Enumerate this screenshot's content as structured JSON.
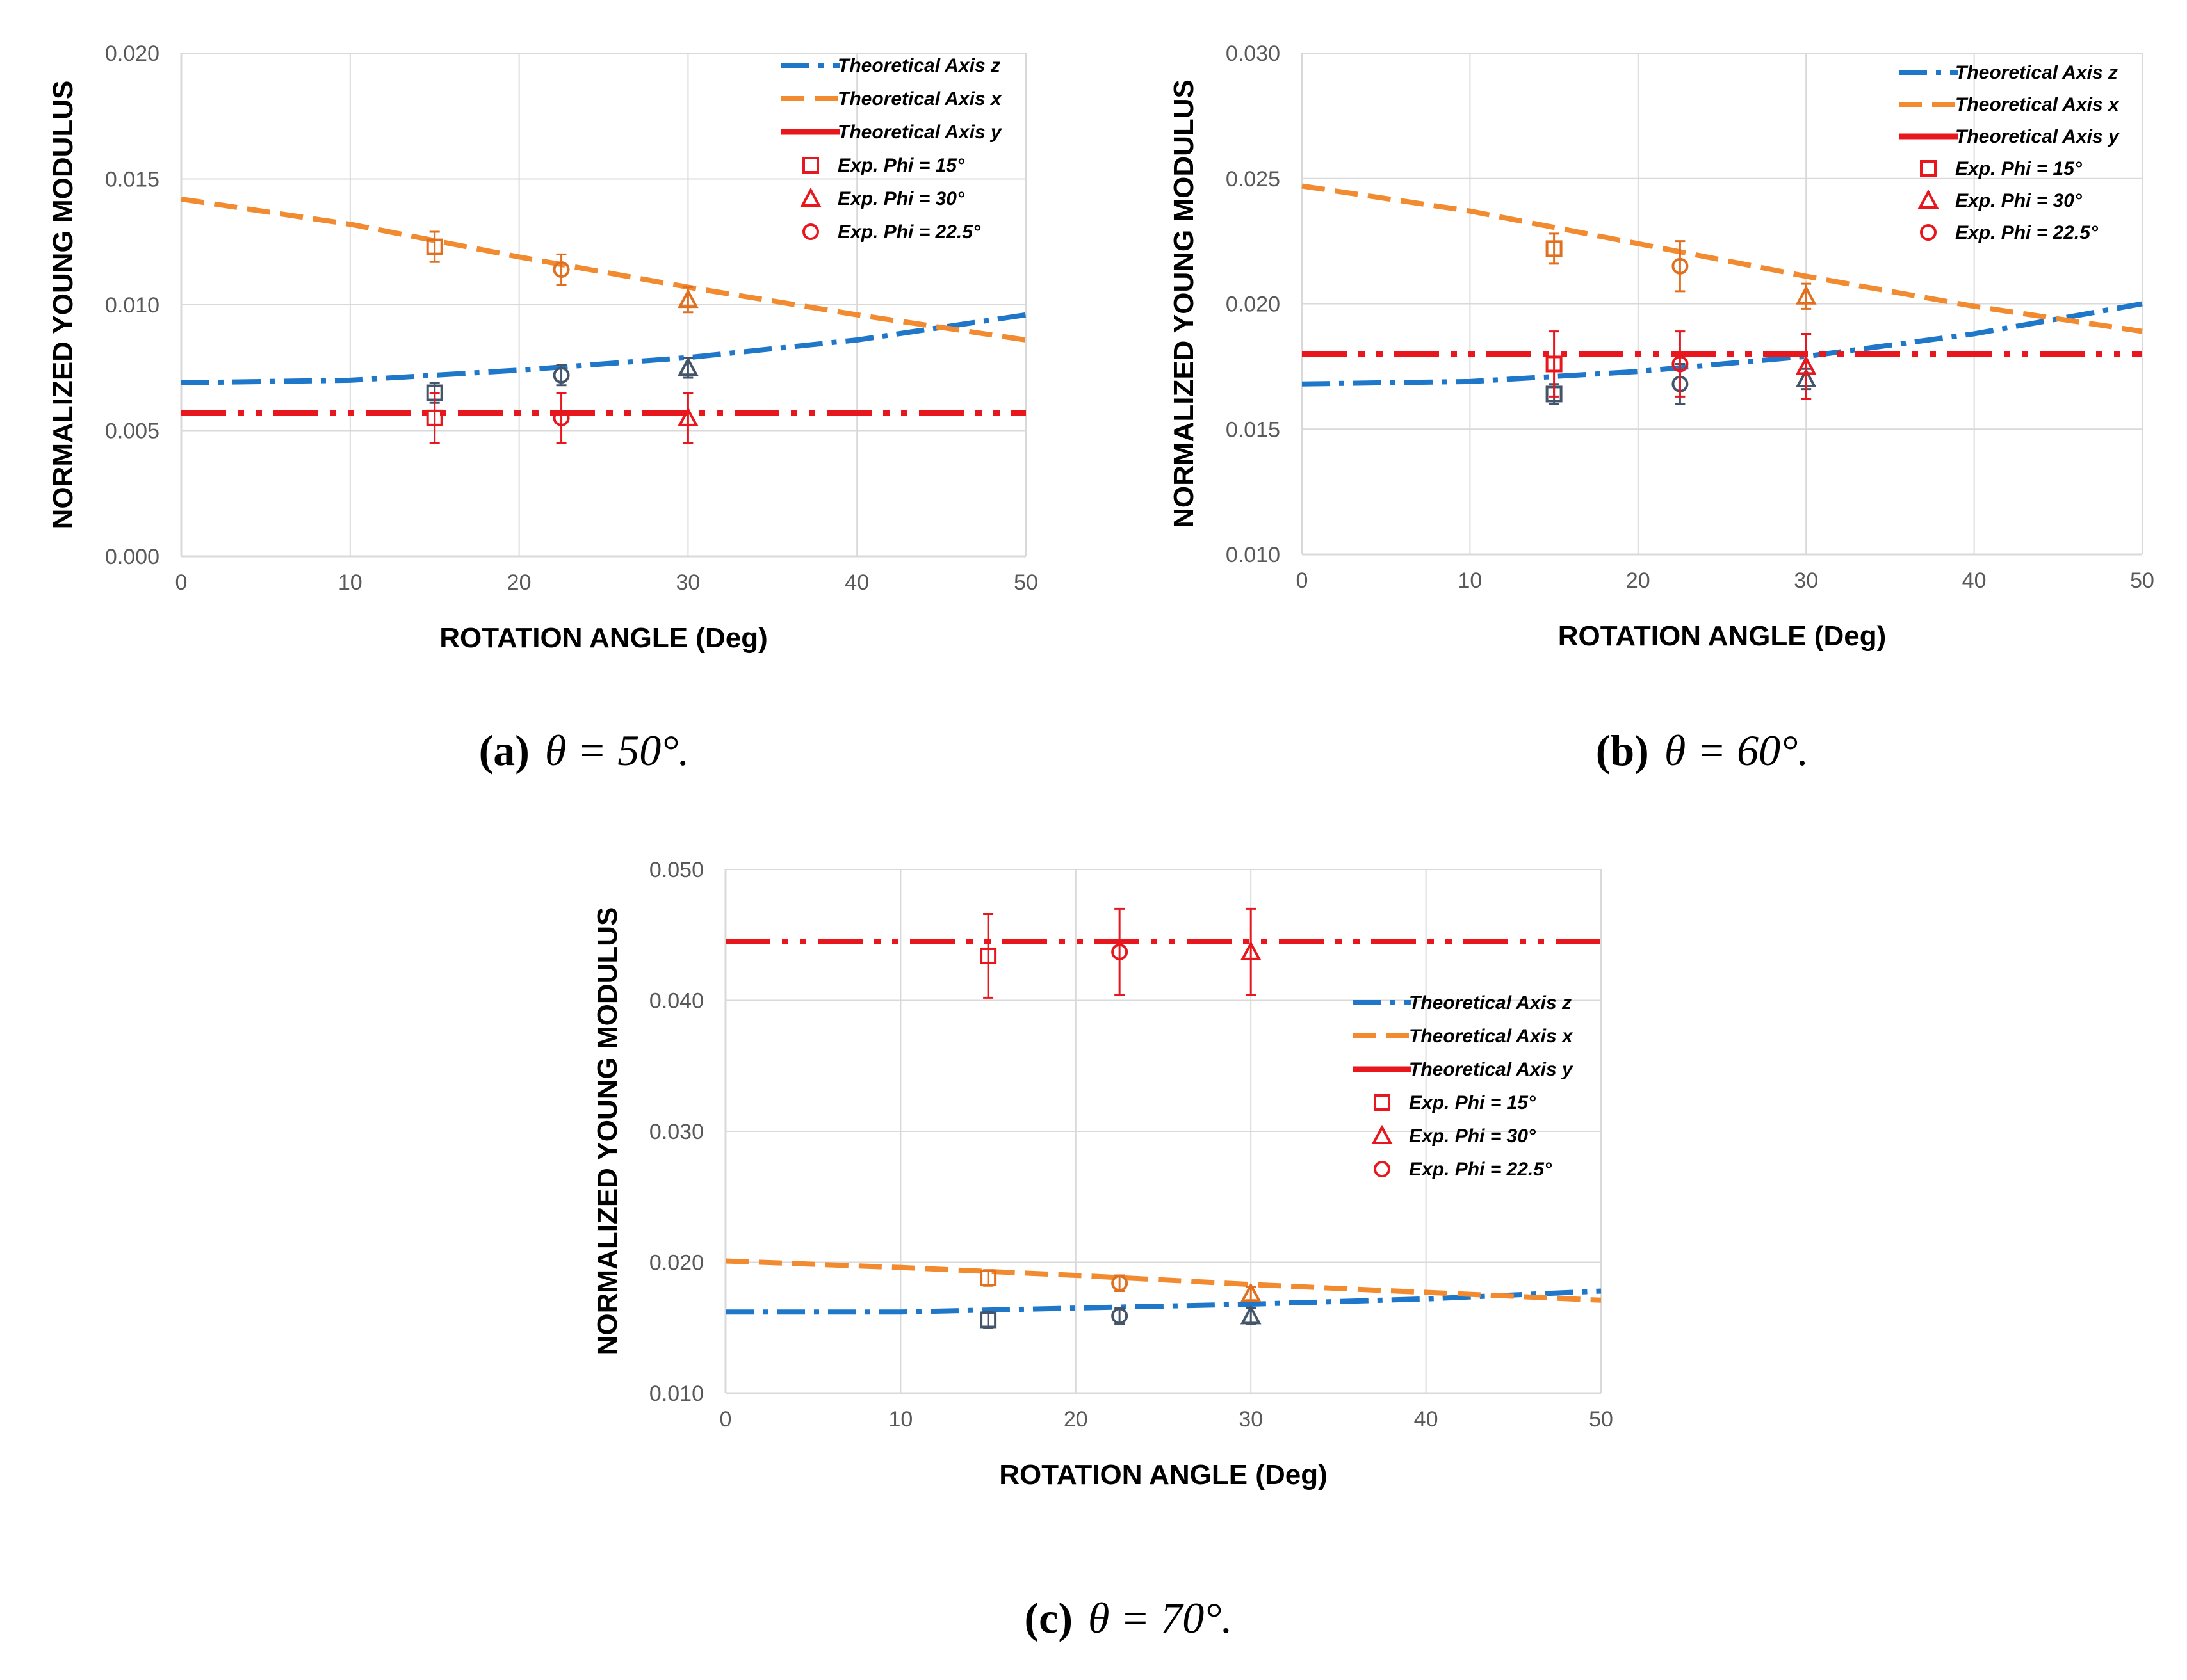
{
  "colors": {
    "axis_z": "#1f77c9",
    "axis_x": "#f28a30",
    "axis_y": "#e8171e",
    "exp_red": "#e8171e",
    "exp_orange": "#e07020",
    "exp_blue": "#44546a",
    "grid": "#d9d9d9"
  },
  "chart_data": [
    {
      "type": "line",
      "panel": "a",
      "caption": {
        "label": "(a)",
        "text": "θ = 50°."
      },
      "xlabel": "ROTATION ANGLE (Deg)",
      "ylabel": "NORMALIZED YOUNG MODULUS",
      "xlim": [
        0,
        50
      ],
      "ylim": [
        0.0,
        0.02
      ],
      "xticks": [
        "0",
        "10",
        "20",
        "30",
        "40",
        "50"
      ],
      "yticks": [
        "0.000",
        "0.005",
        "0.010",
        "0.015",
        "0.020"
      ],
      "legend_position": "top-right",
      "legend": [
        "Theoretical Axis z",
        "Theoretical Axis x",
        "Theoretical Axis y",
        "Exp. Phi = 15°",
        "Exp. Phi = 30°",
        "Exp. Phi = 22.5°"
      ],
      "series": [
        {
          "name": "Theoretical Axis z",
          "kind": "line",
          "x": [
            0,
            10,
            20,
            30,
            40,
            50
          ],
          "y": [
            0.0069,
            0.007,
            0.0074,
            0.0079,
            0.0086,
            0.0096
          ]
        },
        {
          "name": "Theoretical Axis x",
          "kind": "line",
          "x": [
            0,
            10,
            20,
            30,
            40,
            50
          ],
          "y": [
            0.0142,
            0.0132,
            0.0119,
            0.0107,
            0.0096,
            0.0086
          ]
        },
        {
          "name": "Theoretical Axis y",
          "kind": "line",
          "x": [
            0,
            50
          ],
          "y": [
            0.0057,
            0.0057
          ]
        }
      ],
      "experimental": [
        {
          "marker": "square",
          "x": 15,
          "y": 0.0123,
          "err": 0.0006,
          "color": "exp_orange"
        },
        {
          "marker": "circle",
          "x": 22.5,
          "y": 0.0114,
          "err": 0.0006,
          "color": "exp_orange"
        },
        {
          "marker": "triangle",
          "x": 30,
          "y": 0.0102,
          "err": 0.0005,
          "color": "exp_orange"
        },
        {
          "marker": "square",
          "x": 15,
          "y": 0.0065,
          "err": 0.0004,
          "color": "exp_blue"
        },
        {
          "marker": "circle",
          "x": 22.5,
          "y": 0.0072,
          "err": 0.0004,
          "color": "exp_blue"
        },
        {
          "marker": "triangle",
          "x": 30,
          "y": 0.0075,
          "err": 0.0004,
          "color": "exp_blue"
        },
        {
          "marker": "square",
          "x": 15,
          "y": 0.0055,
          "err": 0.001,
          "color": "exp_red"
        },
        {
          "marker": "circle",
          "x": 22.5,
          "y": 0.0055,
          "err": 0.001,
          "color": "exp_red"
        },
        {
          "marker": "triangle",
          "x": 30,
          "y": 0.0055,
          "err": 0.001,
          "color": "exp_red"
        }
      ]
    },
    {
      "type": "line",
      "panel": "b",
      "caption": {
        "label": "(b)",
        "text": "θ = 60°."
      },
      "xlabel": "ROTATION ANGLE (Deg)",
      "ylabel": "NORMALIZED YOUNG MODULUS",
      "xlim": [
        0,
        50
      ],
      "ylim": [
        0.01,
        0.03
      ],
      "xticks": [
        "0",
        "10",
        "20",
        "30",
        "40",
        "50"
      ],
      "yticks": [
        "0.010",
        "0.015",
        "0.020",
        "0.025",
        "0.030"
      ],
      "legend_position": "top-right",
      "legend": [
        "Theoretical Axis z",
        "Theoretical Axis x",
        "Theoretical Axis y",
        "Exp. Phi = 15°",
        "Exp. Phi = 30°",
        "Exp. Phi = 22.5°"
      ],
      "series": [
        {
          "name": "Theoretical Axis z",
          "kind": "line",
          "x": [
            0,
            10,
            20,
            30,
            40,
            50
          ],
          "y": [
            0.0168,
            0.0169,
            0.0173,
            0.0179,
            0.0188,
            0.02
          ]
        },
        {
          "name": "Theoretical Axis x",
          "kind": "line",
          "x": [
            0,
            10,
            20,
            30,
            40,
            50
          ],
          "y": [
            0.0247,
            0.0237,
            0.0224,
            0.0211,
            0.0199,
            0.0189
          ]
        },
        {
          "name": "Theoretical Axis y",
          "kind": "line",
          "x": [
            0,
            50
          ],
          "y": [
            0.018,
            0.018
          ]
        }
      ],
      "experimental": [
        {
          "marker": "square",
          "x": 15,
          "y": 0.0222,
          "err": 0.0006,
          "color": "exp_orange"
        },
        {
          "marker": "circle",
          "x": 22.5,
          "y": 0.0215,
          "err": 0.001,
          "color": "exp_orange"
        },
        {
          "marker": "triangle",
          "x": 30,
          "y": 0.0203,
          "err": 0.0005,
          "color": "exp_orange"
        },
        {
          "marker": "square",
          "x": 15,
          "y": 0.0164,
          "err": 0.0004,
          "color": "exp_blue"
        },
        {
          "marker": "circle",
          "x": 22.5,
          "y": 0.0168,
          "err": 0.0008,
          "color": "exp_blue"
        },
        {
          "marker": "triangle",
          "x": 30,
          "y": 0.017,
          "err": 0.0004,
          "color": "exp_blue"
        },
        {
          "marker": "square",
          "x": 15,
          "y": 0.0176,
          "err": 0.0013,
          "color": "exp_red"
        },
        {
          "marker": "circle",
          "x": 22.5,
          "y": 0.0176,
          "err": 0.0013,
          "color": "exp_red"
        },
        {
          "marker": "triangle",
          "x": 30,
          "y": 0.0175,
          "err": 0.0013,
          "color": "exp_red"
        }
      ]
    },
    {
      "type": "line",
      "panel": "c",
      "caption": {
        "label": "(c)",
        "text": "θ = 70°."
      },
      "xlabel": "ROTATION ANGLE (Deg)",
      "ylabel": "NORMALIZED YOUNG MODULUS",
      "xlim": [
        0,
        50
      ],
      "ylim": [
        0.01,
        0.05
      ],
      "xticks": [
        "0",
        "10",
        "20",
        "30",
        "40",
        "50"
      ],
      "yticks": [
        "0.010",
        "0.020",
        "0.030",
        "0.040",
        "0.050"
      ],
      "legend_position": "center-right",
      "legend": [
        "Theoretical Axis z",
        "Theoretical Axis x",
        "Theoretical Axis y",
        "Exp. Phi = 15°",
        "Exp. Phi = 30°",
        "Exp. Phi = 22.5°"
      ],
      "series": [
        {
          "name": "Theoretical Axis z",
          "kind": "line",
          "x": [
            0,
            10,
            20,
            30,
            40,
            50
          ],
          "y": [
            0.0162,
            0.0162,
            0.0165,
            0.0168,
            0.0172,
            0.0178
          ]
        },
        {
          "name": "Theoretical Axis x",
          "kind": "line",
          "x": [
            0,
            10,
            20,
            30,
            40,
            50
          ],
          "y": [
            0.0201,
            0.0196,
            0.019,
            0.0183,
            0.0177,
            0.0171
          ]
        },
        {
          "name": "Theoretical Axis y",
          "kind": "line",
          "x": [
            0,
            50
          ],
          "y": [
            0.0445,
            0.0445
          ]
        }
      ],
      "experimental": [
        {
          "marker": "square",
          "x": 15,
          "y": 0.0434,
          "err": 0.0032,
          "color": "exp_red"
        },
        {
          "marker": "circle",
          "x": 22.5,
          "y": 0.0437,
          "err": 0.0033,
          "color": "exp_red"
        },
        {
          "marker": "triangle",
          "x": 30,
          "y": 0.0437,
          "err": 0.0033,
          "color": "exp_red"
        },
        {
          "marker": "square",
          "x": 15,
          "y": 0.0188,
          "err": 0.0006,
          "color": "exp_orange"
        },
        {
          "marker": "circle",
          "x": 22.5,
          "y": 0.0184,
          "err": 0.0006,
          "color": "exp_orange"
        },
        {
          "marker": "triangle",
          "x": 30,
          "y": 0.0176,
          "err": 0.0005,
          "color": "exp_orange"
        },
        {
          "marker": "square",
          "x": 15,
          "y": 0.0156,
          "err": 0.0006,
          "color": "exp_blue"
        },
        {
          "marker": "circle",
          "x": 22.5,
          "y": 0.0159,
          "err": 0.0006,
          "color": "exp_blue"
        },
        {
          "marker": "triangle",
          "x": 30,
          "y": 0.0159,
          "err": 0.0006,
          "color": "exp_blue"
        }
      ]
    }
  ]
}
